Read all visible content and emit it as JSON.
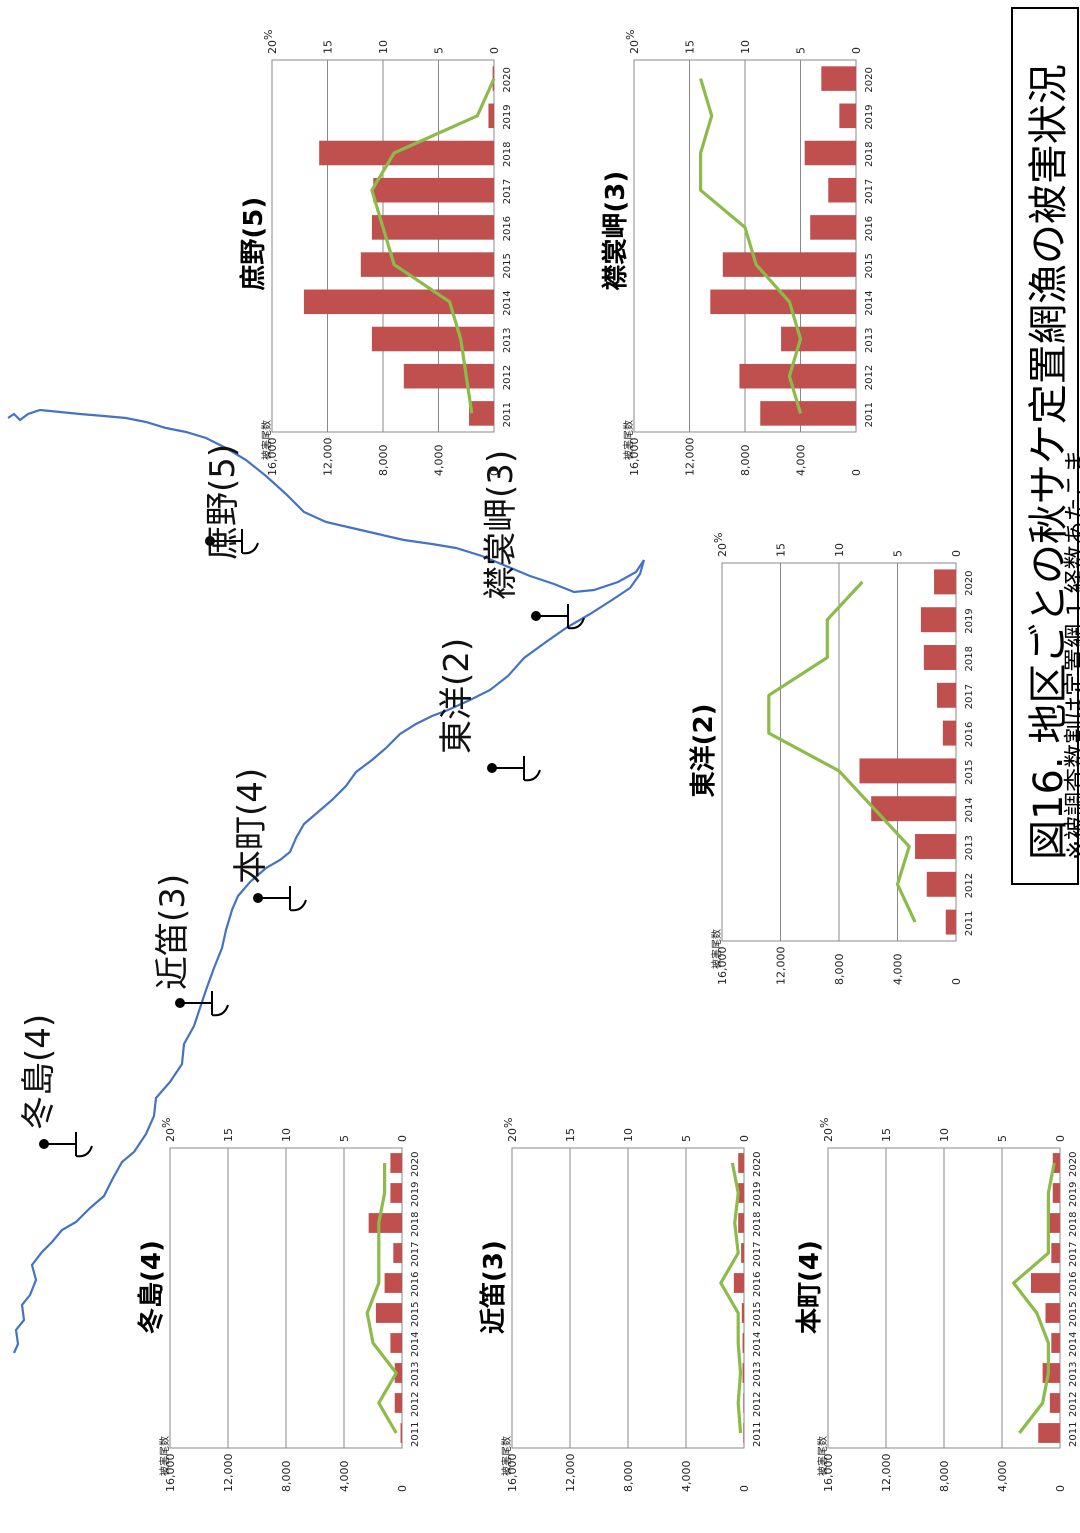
{
  "figure": {
    "title": "図16. 地区ごとの秋サケ定置網漁の被害状況",
    "note": "※被調査数割は定置網 1 経数あたこま"
  },
  "map": {
    "places": [
      {
        "name": "冬島(4)"
      },
      {
        "name": "近笛(3)"
      },
      {
        "name": "本町(4)"
      },
      {
        "name": "東洋(2)"
      },
      {
        "name": "庶野(5)"
      },
      {
        "name": "襟裳岬(3)"
      }
    ]
  },
  "colors": {
    "bar": "#c0504d",
    "line": "#8cbb4a",
    "coast": "#4472c4",
    "grid": "#888888"
  },
  "axis_labels": {
    "left": "被害尾数",
    "right": "%"
  },
  "chart_data": [
    {
      "type": "bar",
      "title": "冬島(4)",
      "categories": [
        "2011",
        "2012",
        "2013",
        "2014",
        "2015",
        "2016",
        "2017",
        "2018",
        "2019",
        "2020"
      ],
      "series": [
        {
          "values": [
            100,
            500,
            500,
            800,
            1800,
            1200,
            600,
            2300,
            800,
            800
          ]
        },
        {
          "values": [
            0.5,
            2,
            0.5,
            2.5,
            3,
            2,
            2,
            2,
            1.5,
            1.5
          ]
        }
      ],
      "ylim_left": [
        0,
        16000
      ],
      "yticks_left": [
        "0",
        "4,000",
        "8,000",
        "12,000",
        "16,000"
      ],
      "ylim_right": [
        0,
        20
      ],
      "yticks_right": [
        "0",
        "5",
        "10",
        "15",
        "20"
      ]
    },
    {
      "type": "bar",
      "title": "近笛(3)",
      "categories": [
        "2011",
        "2012",
        "2013",
        "2014",
        "2015",
        "2016",
        "2017",
        "2018",
        "2019",
        "2020"
      ],
      "series": [
        {
          "values": [
            50,
            50,
            100,
            100,
            150,
            700,
            200,
            400,
            400,
            400
          ]
        },
        {
          "values": [
            0.3,
            0.5,
            0.3,
            0.5,
            0.5,
            2,
            0.5,
            0.8,
            0.5,
            1
          ]
        }
      ],
      "ylim_left": [
        0,
        16000
      ],
      "yticks_left": [
        "0",
        "4,000",
        "8,000",
        "12,000",
        "16,000"
      ],
      "ylim_right": [
        0,
        20
      ],
      "yticks_right": [
        "0",
        "5",
        "10",
        "15",
        "20"
      ]
    },
    {
      "type": "bar",
      "title": "本町(4)",
      "categories": [
        "2011",
        "2012",
        "2013",
        "2014",
        "2015",
        "2016",
        "2017",
        "2018",
        "2019",
        "2020"
      ],
      "series": [
        {
          "values": [
            1500,
            700,
            1200,
            600,
            1000,
            2000,
            600,
            700,
            500,
            500
          ]
        },
        {
          "values": [
            3.5,
            1.5,
            1,
            1,
            2,
            4,
            1,
            1,
            1,
            0.5
          ]
        }
      ],
      "ylim_left": [
        0,
        16000
      ],
      "yticks_left": [
        "0",
        "4,000",
        "8,000",
        "12,000",
        "16,000"
      ],
      "ylim_right": [
        0,
        20
      ],
      "yticks_right": [
        "0",
        "5",
        "10",
        "15",
        "20"
      ]
    },
    {
      "type": "bar",
      "title": "東洋(2)",
      "categories": [
        "2011",
        "2012",
        "2013",
        "2014",
        "2015",
        "2016",
        "2017",
        "2018",
        "2019",
        "2020"
      ],
      "series": [
        {
          "values": [
            700,
            2000,
            2800,
            5800,
            6600,
            900,
            1300,
            2200,
            2400,
            1500
          ]
        },
        {
          "values": [
            3.5,
            5,
            4,
            7,
            10,
            16,
            16,
            11,
            11,
            8
          ]
        }
      ],
      "ylim_left": [
        0,
        16000
      ],
      "yticks_left": [
        "0",
        "4,000",
        "8,000",
        "12,000",
        "16,000"
      ],
      "ylim_right": [
        0,
        20
      ],
      "yticks_right": [
        "0",
        "5",
        "10",
        "15",
        "20"
      ]
    },
    {
      "type": "bar",
      "title": "庶野(5)",
      "categories": [
        "2011",
        "2012",
        "2013",
        "2014",
        "2015",
        "2016",
        "2017",
        "2018",
        "2019",
        "2020"
      ],
      "series": [
        {
          "values": [
            1800,
            6500,
            8800,
            13700,
            9600,
            8800,
            8700,
            12600,
            400,
            100
          ]
        },
        {
          "values": [
            2,
            2.5,
            3,
            4,
            9,
            10,
            11,
            9,
            1.5,
            0
          ]
        }
      ],
      "ylim_left": [
        0,
        16000
      ],
      "yticks_left": [
        "0",
        "4,000",
        "8,000",
        "12,000",
        "16,000"
      ],
      "ylim_right": [
        0,
        20
      ],
      "yticks_right": [
        "0",
        "5",
        "10",
        "15",
        "20"
      ]
    },
    {
      "type": "bar",
      "title": "襟裳岬(3)",
      "categories": [
        "2011",
        "2012",
        "2013",
        "2014",
        "2015",
        "2016",
        "2017",
        "2018",
        "2019",
        "2020"
      ],
      "series": [
        {
          "values": [
            6900,
            8400,
            5400,
            10500,
            9600,
            3300,
            2000,
            3700,
            1200,
            2500
          ]
        },
        {
          "values": [
            5,
            6,
            5,
            6,
            9,
            10,
            14,
            14,
            13,
            14
          ]
        }
      ],
      "ylim_left": [
        0,
        16000
      ],
      "yticks_left": [
        "0",
        "4,000",
        "8,000",
        "12,000",
        "16,000"
      ],
      "ylim_right": [
        0,
        20
      ],
      "yticks_right": [
        "0",
        "5",
        "10",
        "15",
        "20"
      ]
    }
  ]
}
